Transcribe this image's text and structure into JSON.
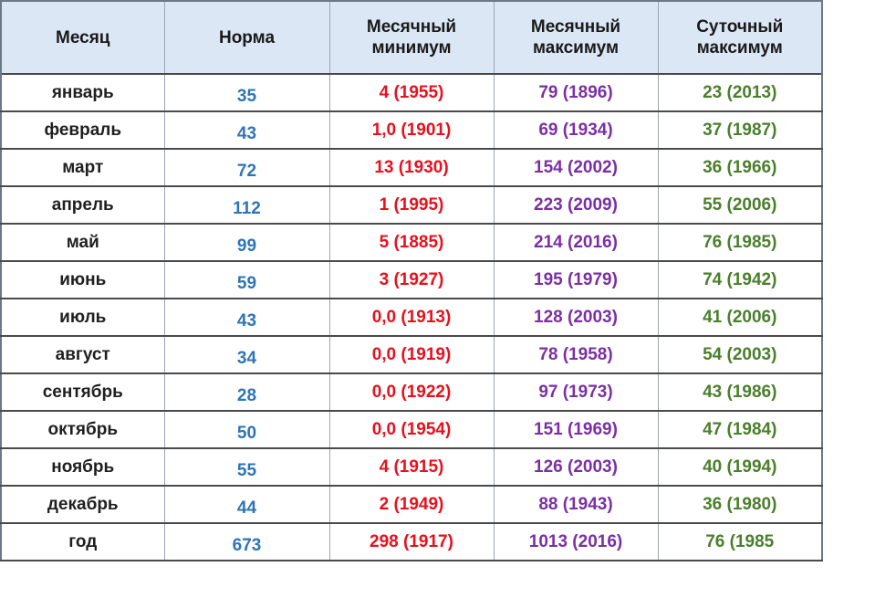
{
  "headers": [
    "Месяц",
    "Норма",
    "Месячный минимум",
    "Месячный максимум",
    "Суточный максимум"
  ],
  "header_lines": [
    [
      "Месяц"
    ],
    [
      "Норма"
    ],
    [
      "Месячный",
      "минимум"
    ],
    [
      "Месячный",
      "максимум"
    ],
    [
      "Суточный",
      "максимум"
    ]
  ],
  "rows": [
    {
      "month": "январь",
      "norm": "35",
      "min": "4 (1955)",
      "max": "79 (1896)",
      "daily": "23 (2013)"
    },
    {
      "month": "февраль",
      "norm": "43",
      "min": "1,0 (1901)",
      "max": "69 (1934)",
      "daily": "37 (1987)"
    },
    {
      "month": "март",
      "norm": "72",
      "min": "13 (1930)",
      "max": "154 (2002)",
      "daily": "36 (1966)"
    },
    {
      "month": "апрель",
      "norm": "112",
      "min": "1 (1995)",
      "max": "223 (2009)",
      "daily": "55 (2006)"
    },
    {
      "month": "май",
      "norm": "99",
      "min": "5 (1885)",
      "max": "214 (2016)",
      "daily": "76 (1985)"
    },
    {
      "month": "июнь",
      "norm": "59",
      "min": "3 (1927)",
      "max": "195 (1979)",
      "daily": "74 (1942)"
    },
    {
      "month": "июль",
      "norm": "43",
      "min": "0,0 (1913)",
      "max": "128 (2003)",
      "daily": "41 (2006)"
    },
    {
      "month": "август",
      "norm": "34",
      "min": "0,0 (1919)",
      "max": "78 (1958)",
      "daily": "54 (2003)"
    },
    {
      "month": "сентябрь",
      "norm": "28",
      "min": "0,0 (1922)",
      "max": "97 (1973)",
      "daily": "43 (1986)"
    },
    {
      "month": "октябрь",
      "norm": "50",
      "min": "0,0 (1954)",
      "max": "151 (1969)",
      "daily": "47 (1984)"
    },
    {
      "month": "ноябрь",
      "norm": "55",
      "min": "4 (1915)",
      "max": "126 (2003)",
      "daily": "40 (1994)"
    },
    {
      "month": "декабрь",
      "norm": "44",
      "min": "2 (1949)",
      "max": "88 (1943)",
      "daily": "36 (1980)"
    },
    {
      "month": "год",
      "norm": "673",
      "min": "298 (1917)",
      "max": "1013 (2016)",
      "daily": "76 (1985"
    }
  ],
  "colors": {
    "header_bg": "#dce7f6",
    "norm": "#2e75b6",
    "min": "#e8101c",
    "max": "#7b2fa5",
    "daily": "#4a7f2c"
  }
}
